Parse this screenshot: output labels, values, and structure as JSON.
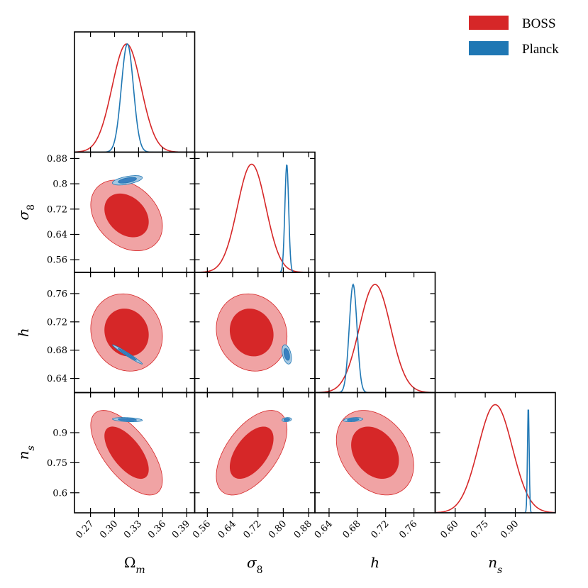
{
  "chart_data": {
    "type": "corner",
    "params": [
      {
        "key": "om",
        "axis_label": "Ω",
        "axis_sub": "m",
        "range": [
          0.25,
          0.4
        ],
        "ticks": [
          0.27,
          0.3,
          0.33,
          0.36,
          0.39
        ],
        "tick_labels": [
          "0.27",
          "0.30",
          "0.33",
          "0.36",
          "0.39"
        ]
      },
      {
        "key": "s8",
        "axis_label": "σ",
        "axis_sub": "8",
        "range": [
          0.52,
          0.9
        ],
        "ticks": [
          0.56,
          0.64,
          0.72,
          0.8,
          0.88
        ],
        "tick_labels": [
          "0.56",
          "0.64",
          "0.72",
          "0.80",
          "0.88"
        ],
        "y_tick_labels": [
          "0.56",
          "0.64",
          "0.72",
          "0.8",
          "0.88"
        ]
      },
      {
        "key": "h",
        "axis_label": "h",
        "axis_sub": "",
        "range": [
          0.62,
          0.79
        ],
        "ticks": [
          0.64,
          0.68,
          0.72,
          0.76
        ],
        "tick_labels": [
          "0.64",
          "0.68",
          "0.72",
          "0.76"
        ]
      },
      {
        "key": "ns",
        "axis_label": "n",
        "axis_sub": "s",
        "range": [
          0.5,
          1.1
        ],
        "ticks": [
          0.6,
          0.75,
          0.9
        ],
        "tick_labels": [
          "0.60",
          "0.75",
          "0.90"
        ],
        "y_tick_labels": [
          "0.6",
          "0.75",
          "0.9"
        ]
      }
    ],
    "series": [
      {
        "name": "BOSS",
        "color": "#d62728",
        "fill_outer": "#f0a3a4",
        "fill_inner": "#d62728",
        "mean": [
          0.315,
          0.7,
          0.705,
          0.8
        ],
        "sd": [
          0.018,
          0.045,
          0.022,
          0.085
        ],
        "corr": {
          "om-s8": -0.3,
          "om-h": -0.1,
          "om-ns": -0.65,
          "s8-h": -0.1,
          "s8-ns": 0.55,
          "h-ns": -0.3
        }
      },
      {
        "name": "Planck",
        "color": "#1f77b4",
        "fill_outer": "#a6c8e2",
        "fill_inner": "#3a7fbf",
        "mean": [
          0.316,
          0.811,
          0.674,
          0.965
        ],
        "sd": [
          0.0075,
          0.006,
          0.0055,
          0.0042
        ],
        "corr": {
          "om-s8": 0.55,
          "om-h": -0.98,
          "om-ns": -0.3,
          "s8-h": -0.4,
          "s8-ns": 0.2,
          "h-ns": 0.35
        }
      }
    ],
    "legend": {
      "position": "top-right",
      "entries": [
        "BOSS",
        "Planck"
      ]
    }
  }
}
